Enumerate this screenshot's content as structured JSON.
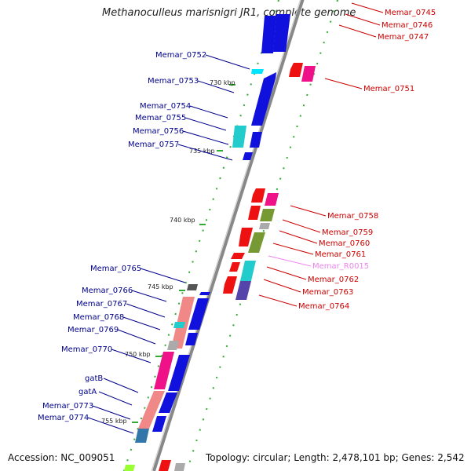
{
  "title": "Methanoculleus marisnigri JR1, complete genome",
  "footer": {
    "accession": "Accession: NC_009051",
    "topology": "Topology: circular; Length: 2,478,101 bp; Genes: 2,542"
  },
  "scale_ticks": [
    "730 kbp",
    "735 kbp",
    "740 kbp",
    "745 kbp",
    "750 kbp",
    "755 kbp"
  ],
  "left_genes": [
    "Memar_0752",
    "Memar_0753",
    "Memar_0754",
    "Memar_0755",
    "Memar_0756",
    "Memar_0757",
    "Memar_0765",
    "Memar_0766",
    "Memar_0767",
    "Memar_0768",
    "Memar_0769",
    "Memar_0770",
    "gatB",
    "gatA",
    "Memar_0773",
    "Memar_0774"
  ],
  "right_genes": [
    "Memar_0745",
    "Memar_0746",
    "Memar_0747",
    "Memar_0751",
    "Memar_0758",
    "Memar_0759",
    "Memar_0760",
    "Memar_0761",
    "Memar_R0015",
    "Memar_0762",
    "Memar_0763",
    "Memar_0764"
  ],
  "colors": {
    "backbone": "#8c8c8c",
    "blue": "#1111dd",
    "red": "#ee1111",
    "magenta": "#ee1188",
    "cyan": "#22cccc",
    "salmon": "#f08888",
    "olive": "#779933",
    "grey": "#aaaaaa",
    "purple": "#5544aa",
    "green_dot": "#33aa33",
    "label_blue": "#00008b",
    "label_red": "#cc0000",
    "label_pink": "#ee82ee"
  }
}
